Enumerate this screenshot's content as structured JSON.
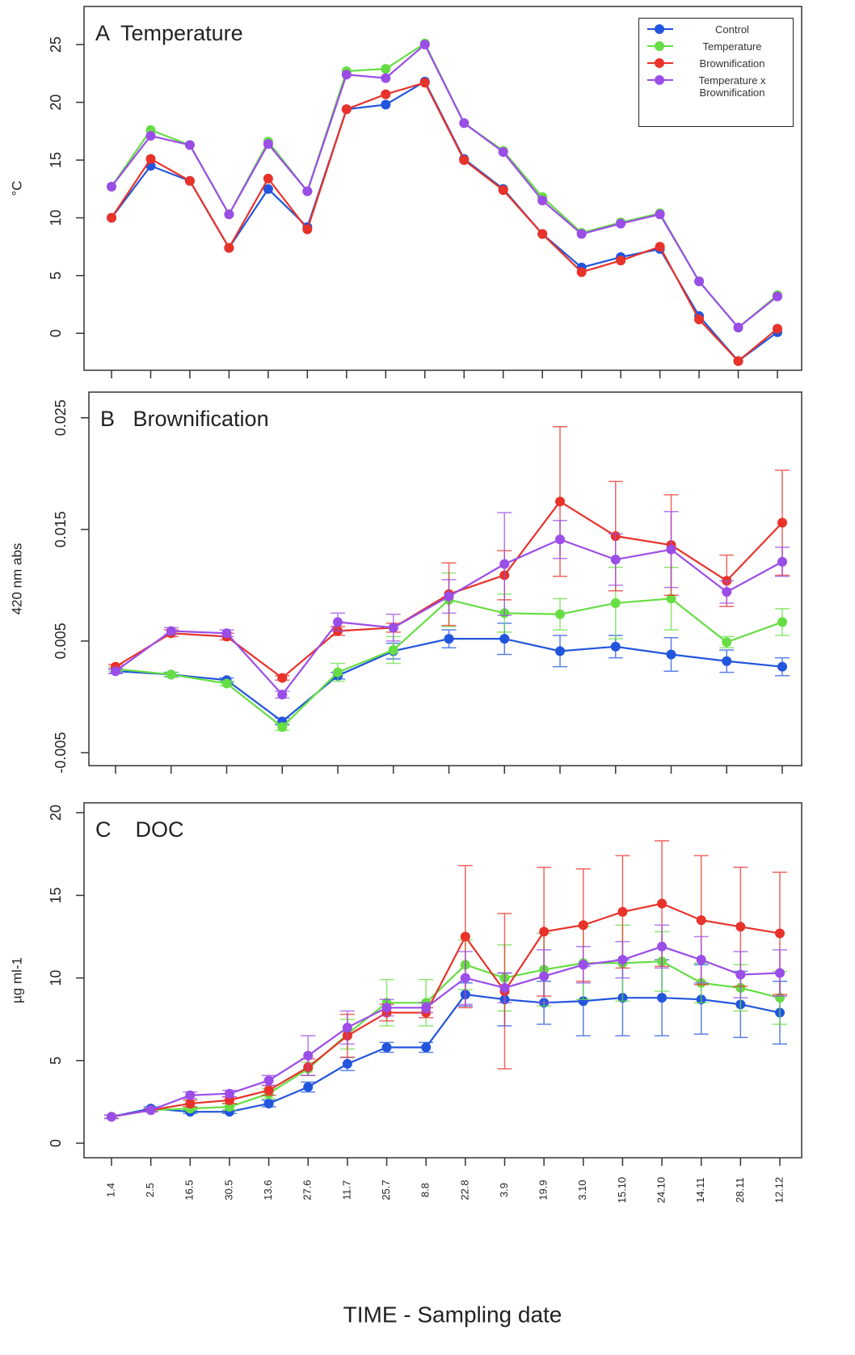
{
  "chart_data": [
    {
      "type": "line",
      "title": "A  Temperature",
      "ylabel": "°C",
      "legend": "top-right",
      "categories": [
        null,
        null,
        null,
        null,
        null,
        null,
        null,
        null,
        null,
        null,
        null,
        null,
        null,
        null,
        null,
        null,
        null,
        null
      ],
      "ylim": [
        -3.2,
        28.3
      ],
      "yticks": [
        0,
        5,
        10,
        15,
        20,
        25
      ],
      "series": [
        {
          "name": "Control",
          "color": "#2255dd",
          "values": [
            10,
            14.5,
            13.2,
            7.4,
            12.5,
            9.2,
            19.4,
            19.8,
            21.8,
            15.1,
            12.5,
            8.6,
            5.7,
            6.6,
            7.3,
            1.5,
            -2.4,
            0.1
          ]
        },
        {
          "name": "Temperature",
          "color": "#66dd44",
          "values": [
            12.7,
            17.6,
            16.3,
            10.3,
            16.6,
            12.3,
            22.7,
            22.9,
            25.1,
            18.2,
            15.8,
            11.8,
            8.7,
            9.6,
            10.4,
            4.5,
            0.5,
            3.3
          ]
        },
        {
          "name": "Brownification",
          "color": "#e8322a",
          "values": [
            10,
            15.1,
            13.2,
            7.4,
            13.4,
            9.0,
            19.4,
            20.7,
            21.7,
            15.0,
            12.4,
            8.6,
            5.3,
            6.3,
            7.5,
            1.2,
            -2.4,
            0.4
          ]
        },
        {
          "name": "Temperature x Brownification",
          "color": "#9b4de8",
          "values": [
            12.7,
            17.1,
            16.3,
            10.3,
            16.4,
            12.3,
            22.4,
            22.1,
            25.0,
            18.2,
            15.7,
            11.5,
            8.6,
            9.5,
            10.3,
            4.5,
            0.5,
            3.2
          ]
        }
      ]
    },
    {
      "type": "line",
      "title": "B   Brownification",
      "ylabel": "420 nm abs",
      "categories": [
        null,
        null,
        null,
        null,
        null,
        null,
        null,
        null,
        null,
        null,
        null,
        null,
        null
      ],
      "ylim": [
        -0.00616,
        0.0273
      ],
      "yticks": [
        -0.005,
        0.005,
        0.015,
        0.025
      ],
      "series": [
        {
          "name": "Control",
          "color": "#2255dd",
          "values": [
            0.0023,
            0.002,
            0.0015,
            -0.0022,
            0.0019,
            0.0041,
            0.0052,
            0.0052,
            0.0041,
            0.0045,
            0.0038,
            0.0032,
            0.0027
          ],
          "errors": [
            0.0002,
            0.0002,
            0.0002,
            0.0003,
            0.0003,
            0.0007,
            0.0008,
            0.0014,
            0.0014,
            0.001,
            0.0015,
            0.001,
            0.0008
          ]
        },
        {
          "name": "Temperature",
          "color": "#66dd44",
          "values": [
            0.0025,
            0.002,
            0.0012,
            -0.0027,
            0.0022,
            0.0042,
            0.0087,
            0.0075,
            0.0074,
            0.0084,
            0.0088,
            0.0049,
            0.0067
          ],
          "errors": [
            0.0002,
            0.0002,
            0.0002,
            0.0003,
            0.0008,
            0.0012,
            0.0024,
            0.0017,
            0.0014,
            0.0032,
            0.0028,
            0.0005,
            0.0012
          ]
        },
        {
          "name": "Brownification",
          "color": "#e8322a",
          "values": [
            0.0027,
            0.0057,
            0.0054,
            0.0017,
            0.0059,
            0.0062,
            0.0092,
            0.0109,
            0.0175,
            0.0144,
            0.0136,
            0.0104,
            0.0156
          ],
          "errors": [
            0.0002,
            0.0003,
            0.0003,
            0.0002,
            0.0004,
            0.0004,
            0.0028,
            0.0022,
            0.0067,
            0.0049,
            0.0045,
            0.0023,
            0.0047
          ]
        },
        {
          "name": "Temperature x Brownification",
          "color": "#9b4de8",
          "values": [
            0.0023,
            0.0059,
            0.0057,
            0.0002,
            0.0067,
            0.0062,
            0.009,
            0.0119,
            0.0141,
            0.0123,
            0.0132,
            0.0094,
            0.0121
          ],
          "errors": [
            0.0002,
            0.0003,
            0.0003,
            0.0003,
            0.0008,
            0.0012,
            0.0015,
            0.0046,
            0.0017,
            0.0023,
            0.0034,
            0.001,
            0.0013
          ]
        }
      ]
    },
    {
      "type": "line",
      "title": "C    DOC",
      "ylabel": "µg ml-1",
      "xlabel": "TIME - Sampling date",
      "categories": [
        "1.4",
        "2.5",
        "16.5",
        "30.5",
        "13.6",
        "27.6",
        "11.7",
        "25.7",
        "8.8",
        "22.8",
        "3.9",
        "19.9",
        "3.10",
        "15.10",
        "24.10",
        "14.11",
        "28.11",
        "12.12"
      ],
      "ylim": [
        -0.88,
        20.6
      ],
      "yticks": [
        0,
        5,
        10,
        15,
        20
      ],
      "series": [
        {
          "name": "Control",
          "color": "#2255dd",
          "values": [
            1.6,
            2.1,
            1.9,
            1.9,
            2.4,
            3.4,
            4.8,
            5.8,
            5.8,
            9.0,
            8.7,
            8.5,
            8.6,
            8.8,
            8.8,
            8.7,
            8.4,
            7.9
          ],
          "errors": [
            0.1,
            0.1,
            0.1,
            0.1,
            0.2,
            0.3,
            0.4,
            0.3,
            0.3,
            0.7,
            1.6,
            1.3,
            2.1,
            2.3,
            2.3,
            2.1,
            2.0,
            1.9
          ]
        },
        {
          "name": "Temperature",
          "color": "#66dd44",
          "values": [
            1.6,
            2.0,
            2.1,
            2.2,
            3.0,
            4.5,
            6.6,
            8.5,
            8.5,
            10.8,
            10.0,
            10.5,
            10.9,
            10.9,
            11.0,
            9.7,
            9.4,
            8.8
          ],
          "errors": [
            0.1,
            0.1,
            0.1,
            0.2,
            0.3,
            0.4,
            0.9,
            1.4,
            1.4,
            1.5,
            2.0,
            2.2,
            2.2,
            2.3,
            1.8,
            1.2,
            1.4,
            1.6
          ]
        },
        {
          "name": "Brownification",
          "color": "#e8322a",
          "values": [
            1.6,
            2.0,
            2.4,
            2.6,
            3.2,
            4.6,
            6.5,
            7.9,
            7.9,
            12.5,
            9.2,
            12.8,
            13.2,
            14.0,
            14.5,
            13.5,
            13.1,
            12.7
          ],
          "errors": [
            0.1,
            0.1,
            0.2,
            0.2,
            0.3,
            0.5,
            1.3,
            0.5,
            0.3,
            4.3,
            4.7,
            3.9,
            3.4,
            3.4,
            3.8,
            3.9,
            3.6,
            3.7
          ]
        },
        {
          "name": "Temperature x Brownification",
          "color": "#9b4de8",
          "values": [
            1.6,
            2.0,
            2.9,
            3.0,
            3.8,
            5.3,
            7.0,
            8.2,
            8.2,
            10.0,
            9.4,
            10.1,
            10.8,
            11.1,
            11.9,
            11.1,
            10.2,
            10.3
          ],
          "errors": [
            0.1,
            0.1,
            0.2,
            0.2,
            0.3,
            1.2,
            1.0,
            0.5,
            0.3,
            1.6,
            0.9,
            1.6,
            1.1,
            1.1,
            1.3,
            1.4,
            1.4,
            1.4
          ]
        }
      ]
    }
  ]
}
